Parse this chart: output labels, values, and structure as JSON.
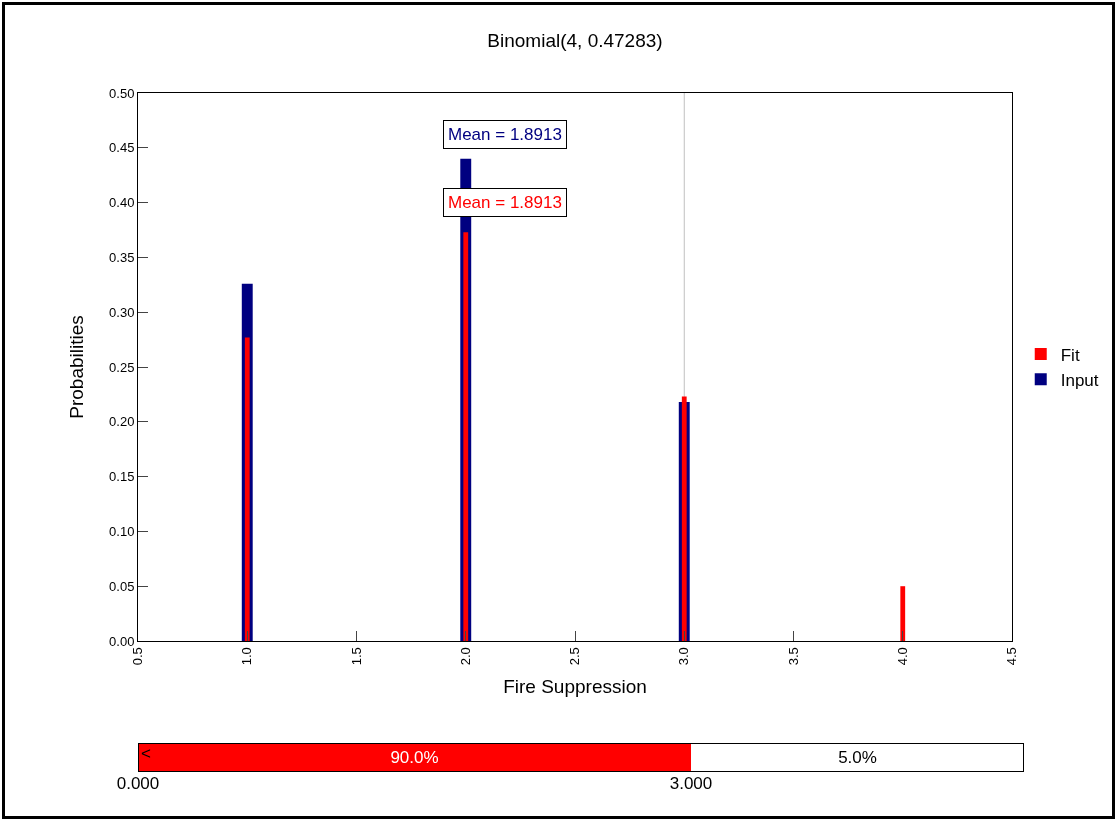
{
  "chart_data": [
    {
      "type": "bar",
      "title": "Binomial(4, 0.47283)",
      "xlabel": "Fire Suppression",
      "ylabel": "Probabilities",
      "x": [
        1,
        2,
        3,
        4
      ],
      "series": [
        {
          "name": "Input",
          "color": "#000080",
          "values": [
            0.326,
            0.44,
            0.218,
            null
          ]
        },
        {
          "name": "Fit",
          "color": "#ff0000",
          "values": [
            0.277,
            0.373,
            0.223,
            0.05
          ]
        }
      ],
      "xlim": [
        0.5,
        4.5
      ],
      "xticks": [
        {
          "value": 0.5,
          "label": "0.5"
        },
        {
          "value": 1,
          "label": "1.0"
        },
        {
          "value": 1.5,
          "label": "1.5"
        },
        {
          "value": 2,
          "label": "2.0"
        },
        {
          "value": 2.5,
          "label": "2.5"
        },
        {
          "value": 3,
          "label": "3.0"
        },
        {
          "value": 3.5,
          "label": "3.5"
        },
        {
          "value": 4,
          "label": "4.0"
        },
        {
          "value": 4.5,
          "label": "4.5"
        }
      ],
      "ylim": [
        0,
        0.5
      ],
      "yticks": [
        {
          "value": 0,
          "label": "0.00"
        },
        {
          "value": 0.05,
          "label": "0.05"
        },
        {
          "value": 0.1,
          "label": "0.10"
        },
        {
          "value": 0.15,
          "label": "0.15"
        },
        {
          "value": 0.2,
          "label": "0.20"
        },
        {
          "value": 0.25,
          "label": "0.25"
        },
        {
          "value": 0.3,
          "label": "0.30"
        },
        {
          "value": 0.35,
          "label": "0.35"
        },
        {
          "value": 0.4,
          "label": "0.40"
        },
        {
          "value": 0.45,
          "label": "0.45"
        },
        {
          "value": 0.5,
          "label": "0.50"
        }
      ],
      "ref_lines": [
        {
          "axis": "x",
          "value": 3,
          "color": "#c0c0c0"
        }
      ],
      "annotations": [
        "Mean = 1.8913",
        "Mean = 1.8913"
      ],
      "legend": "right"
    },
    {
      "type": "other",
      "annotations": [
        "<",
        "90.0%",
        "5.0%",
        "0.000",
        "3.000"
      ]
    }
  ]
}
